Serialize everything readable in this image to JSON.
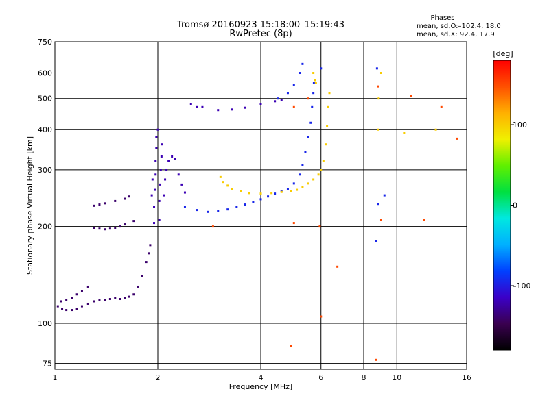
{
  "chart_data": {
    "type": "scatter",
    "title": "Tromsø 20160923 15:18:00–15:19:43",
    "subtitle": "RwPretec (8p)",
    "xlabel": "Frequency [MHz]",
    "ylabel": "Stationary phase Virtual Height [km]",
    "x_scale": "log",
    "y_scale": "log",
    "xlim": [
      1,
      16
    ],
    "ylim": [
      72,
      750
    ],
    "x_ticks": [
      1,
      2,
      4,
      6,
      8,
      10,
      16
    ],
    "x_tick_labels": [
      "1",
      "2",
      "4",
      "6",
      "8",
      "10",
      "16"
    ],
    "y_ticks": [
      75,
      100,
      200,
      300,
      400,
      500,
      600,
      750
    ],
    "y_tick_labels": [
      "75",
      "100",
      "200",
      "300",
      "400",
      "500",
      "600",
      "750"
    ],
    "grid": true,
    "stats": {
      "heading": "Phases",
      "o_line": "mean, sd,O:–102.4,  18.0",
      "x_line": "mean, sd,X:  92.4,  17.9"
    },
    "colorbar": {
      "label": "[deg]",
      "range": [
        -180,
        180
      ],
      "tick_values": [
        100,
        0,
        -100
      ],
      "tick_labels": [
        "100",
        "0",
        "–100"
      ],
      "colors": [
        "#000000",
        "#3a0050",
        "#3b00c8",
        "#0040ff",
        "#00b0ff",
        "#00e8e0",
        "#00e040",
        "#60f000",
        "#f0f000",
        "#ffb000",
        "#ff5000",
        "#ff0000"
      ]
    },
    "series": [
      {
        "values": [
          [
            1.02,
            113
          ],
          [
            1.05,
            111
          ],
          [
            1.08,
            110
          ],
          [
            1.12,
            110
          ],
          [
            1.16,
            111
          ],
          [
            1.2,
            113
          ],
          [
            1.25,
            115
          ],
          [
            1.3,
            117
          ],
          [
            1.35,
            118
          ],
          [
            1.4,
            118
          ],
          [
            1.45,
            119
          ],
          [
            1.5,
            120
          ],
          [
            1.55,
            119
          ],
          [
            1.6,
            120
          ],
          [
            1.65,
            121
          ],
          [
            1.7,
            123
          ],
          [
            1.75,
            130
          ],
          [
            1.8,
            140
          ],
          [
            1.85,
            155
          ],
          [
            1.88,
            165
          ],
          [
            1.9,
            175
          ],
          [
            1.04,
            117
          ],
          [
            1.08,
            118
          ],
          [
            1.12,
            120
          ],
          [
            1.16,
            123
          ],
          [
            1.2,
            126
          ],
          [
            1.25,
            130
          ],
          [
            1.3,
            198
          ],
          [
            1.35,
            197
          ],
          [
            1.4,
            196
          ],
          [
            1.45,
            197
          ],
          [
            1.5,
            198
          ],
          [
            1.55,
            200
          ],
          [
            1.6,
            203
          ],
          [
            1.7,
            208
          ],
          [
            1.3,
            232
          ],
          [
            1.35,
            234
          ],
          [
            1.4,
            236
          ],
          [
            1.5,
            240
          ],
          [
            1.6,
            244
          ],
          [
            1.65,
            248
          ]
        ]
      },
      {
        "values": [
          [
            1.95,
            205
          ],
          [
            1.95,
            230
          ],
          [
            1.96,
            260
          ],
          [
            1.97,
            290
          ],
          [
            1.97,
            320
          ],
          [
            1.98,
            350
          ],
          [
            1.98,
            380
          ],
          [
            2.0,
            400
          ],
          [
            2.02,
            210
          ],
          [
            2.02,
            240
          ],
          [
            2.03,
            270
          ],
          [
            2.04,
            300
          ],
          [
            2.05,
            330
          ],
          [
            2.06,
            360
          ],
          [
            1.92,
            250
          ],
          [
            1.93,
            280
          ],
          [
            2.08,
            250
          ],
          [
            2.1,
            280
          ],
          [
            2.12,
            300
          ],
          [
            2.15,
            320
          ],
          [
            2.2,
            330
          ],
          [
            2.25,
            325
          ],
          [
            2.3,
            290
          ],
          [
            2.35,
            270
          ],
          [
            2.4,
            255
          ],
          [
            2.5,
            480
          ],
          [
            2.6,
            470
          ],
          [
            2.7,
            470
          ],
          [
            3.0,
            460
          ],
          [
            3.3,
            462
          ],
          [
            3.6,
            468
          ],
          [
            4.0,
            480
          ],
          [
            4.4,
            490
          ],
          [
            4.6,
            495
          ]
        ]
      },
      {
        "values": [
          [
            2.4,
            230
          ],
          [
            2.6,
            225
          ],
          [
            2.8,
            222
          ],
          [
            3.0,
            223
          ],
          [
            3.2,
            226
          ],
          [
            3.4,
            230
          ],
          [
            3.6,
            234
          ],
          [
            3.8,
            238
          ],
          [
            4.0,
            243
          ],
          [
            4.2,
            248
          ],
          [
            4.4,
            253
          ],
          [
            4.6,
            258
          ],
          [
            4.8,
            262
          ],
          [
            5.0,
            272
          ],
          [
            5.2,
            290
          ],
          [
            5.3,
            310
          ],
          [
            5.4,
            340
          ],
          [
            5.5,
            380
          ],
          [
            5.6,
            420
          ],
          [
            5.65,
            470
          ],
          [
            5.7,
            520
          ],
          [
            5.72,
            560
          ],
          [
            4.5,
            500
          ],
          [
            4.8,
            520
          ],
          [
            5.0,
            550
          ],
          [
            5.2,
            600
          ],
          [
            5.3,
            640
          ],
          [
            6.0,
            620
          ],
          [
            8.75,
            620
          ],
          [
            8.8,
            235
          ],
          [
            9.2,
            250
          ],
          [
            8.7,
            180
          ]
        ]
      },
      {
        "values": [
          [
            3.05,
            285
          ],
          [
            3.1,
            275
          ],
          [
            3.2,
            268
          ],
          [
            3.3,
            262
          ],
          [
            3.5,
            257
          ],
          [
            3.7,
            254
          ],
          [
            4.0,
            253
          ],
          [
            4.3,
            254
          ],
          [
            4.6,
            256
          ],
          [
            4.9,
            258
          ],
          [
            5.1,
            260
          ],
          [
            5.3,
            265
          ],
          [
            5.5,
            272
          ],
          [
            5.7,
            280
          ],
          [
            5.9,
            290
          ],
          [
            6.0,
            300
          ],
          [
            6.1,
            320
          ],
          [
            6.2,
            360
          ],
          [
            6.25,
            410
          ],
          [
            6.3,
            470
          ],
          [
            6.35,
            520
          ],
          [
            5.7,
            600
          ],
          [
            5.75,
            570
          ],
          [
            5.8,
            560
          ],
          [
            8.8,
            400
          ],
          [
            8.85,
            500
          ],
          [
            9.0,
            600
          ],
          [
            13.0,
            400
          ],
          [
            10.5,
            390
          ]
        ]
      },
      {
        "values": [
          [
            5.5,
            500
          ],
          [
            5.0,
            470
          ],
          [
            11.0,
            510
          ],
          [
            13.5,
            470
          ],
          [
            8.8,
            545
          ],
          [
            5.0,
            205
          ],
          [
            2.9,
            200
          ],
          [
            8.7,
            77
          ],
          [
            4.9,
            85
          ],
          [
            6.0,
            105
          ],
          [
            9.0,
            210
          ],
          [
            6.7,
            150
          ],
          [
            15.0,
            375
          ],
          [
            12.0,
            210
          ],
          [
            5.95,
            200
          ]
        ]
      }
    ]
  }
}
